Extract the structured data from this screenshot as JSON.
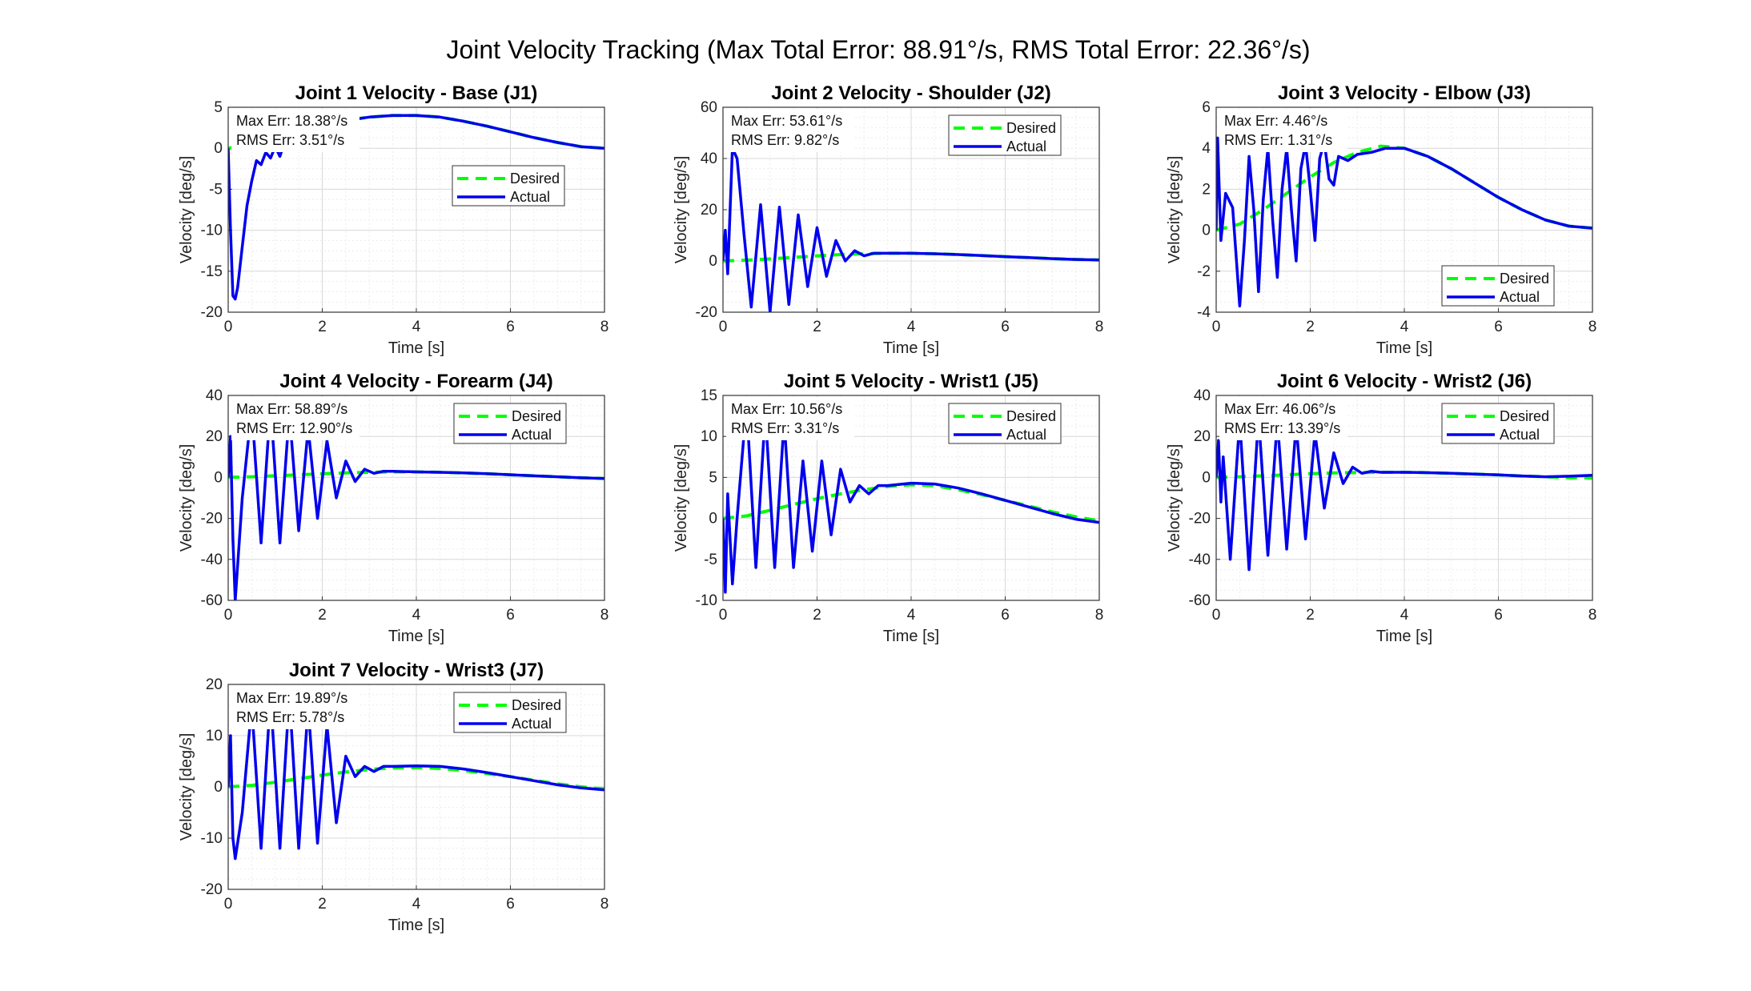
{
  "suptitle": "Joint Velocity Tracking (Max Total Error: 88.91°/s, RMS Total Error: 22.36°/s)",
  "chart_data": [
    {
      "type": "line",
      "title": "Joint 1 Velocity - Base (J1)",
      "xlabel": "Time [s]",
      "ylabel": "Velocity [deg/s]",
      "xlim": [
        0,
        8
      ],
      "ylim": [
        -20,
        5
      ],
      "xticks": [
        0,
        2,
        4,
        6,
        8
      ],
      "yticks": [
        -20,
        -15,
        -10,
        -5,
        0,
        5
      ],
      "grid": true,
      "legend": "right-upper",
      "annotations": [
        "Max Err: 18.38°/s",
        "RMS Err: 3.51°/s"
      ],
      "series": [
        {
          "name": "Desired",
          "color": "#00ff00",
          "style": "dashed",
          "x": [
            0,
            0.5,
            1,
            1.5,
            2,
            2.5,
            3,
            3.5,
            4,
            4.5,
            5,
            5.5,
            6,
            6.5,
            7,
            7.5,
            8
          ],
          "y": [
            0,
            0.5,
            1.2,
            2.0,
            2.8,
            3.4,
            3.8,
            4.0,
            4.0,
            3.8,
            3.3,
            2.7,
            2.0,
            1.3,
            0.7,
            0.2,
            0
          ]
        },
        {
          "name": "Actual",
          "color": "#0000ee",
          "style": "solid",
          "x": [
            0,
            0.05,
            0.1,
            0.15,
            0.2,
            0.3,
            0.4,
            0.5,
            0.6,
            0.7,
            0.8,
            0.9,
            1.0,
            1.1,
            1.2,
            1.4,
            1.6,
            1.8,
            2.0,
            2.5,
            3,
            3.5,
            4,
            4.5,
            5,
            5.5,
            6,
            6.5,
            7,
            7.5,
            8
          ],
          "y": [
            0,
            -10,
            -18.0,
            -18.4,
            -17.0,
            -12.0,
            -7.0,
            -4.0,
            -1.5,
            -2.0,
            -0.5,
            -1.2,
            0.2,
            -1.0,
            0.8,
            1.2,
            1.6,
            2.2,
            2.7,
            3.4,
            3.8,
            4.0,
            4.0,
            3.8,
            3.3,
            2.7,
            2.0,
            1.3,
            0.7,
            0.2,
            0
          ]
        }
      ]
    },
    {
      "type": "line",
      "title": "Joint 2 Velocity - Shoulder (J2)",
      "xlabel": "Time [s]",
      "ylabel": "Velocity [deg/s]",
      "xlim": [
        0,
        8
      ],
      "ylim": [
        -20,
        60
      ],
      "xticks": [
        0,
        2,
        4,
        6,
        8
      ],
      "yticks": [
        -20,
        0,
        20,
        40,
        60
      ],
      "grid": true,
      "legend": "top-right",
      "annotations": [
        "Max Err: 53.61°/s",
        "RMS Err: 9.82°/s"
      ],
      "series": [
        {
          "name": "Desired",
          "color": "#00ff00",
          "style": "dashed",
          "x": [
            0,
            0.5,
            1,
            1.5,
            2,
            2.5,
            3,
            3.5,
            4,
            4.5,
            5,
            5.5,
            6,
            6.5,
            7,
            7.5,
            8
          ],
          "y": [
            0,
            0.3,
            0.8,
            1.4,
            2.0,
            2.5,
            2.8,
            3.0,
            3.0,
            2.8,
            2.5,
            2.1,
            1.7,
            1.3,
            0.9,
            0.6,
            0.4
          ]
        },
        {
          "name": "Actual",
          "color": "#0000ee",
          "style": "solid",
          "x": [
            0,
            0.05,
            0.1,
            0.2,
            0.3,
            0.45,
            0.6,
            0.8,
            1.0,
            1.2,
            1.4,
            1.6,
            1.8,
            2.0,
            2.2,
            2.4,
            2.6,
            2.8,
            3.0,
            3.2,
            3.5,
            4,
            4.5,
            5,
            5.5,
            6,
            6.5,
            7,
            7.5,
            8
          ],
          "y": [
            0,
            12,
            -5,
            44,
            40,
            10,
            -18,
            22,
            -20,
            21,
            -17,
            18,
            -10,
            13,
            -6,
            8,
            0,
            4,
            2,
            3,
            3,
            3,
            2.8,
            2.5,
            2.1,
            1.7,
            1.3,
            0.9,
            0.6,
            0.4
          ]
        }
      ]
    },
    {
      "type": "line",
      "title": "Joint 3 Velocity - Elbow (J3)",
      "xlabel": "Time [s]",
      "ylabel": "Velocity [deg/s]",
      "xlim": [
        0,
        8
      ],
      "ylim": [
        -4,
        6
      ],
      "xticks": [
        0,
        2,
        4,
        6,
        8
      ],
      "yticks": [
        -4,
        -2,
        0,
        2,
        4,
        6
      ],
      "grid": true,
      "legend": "bottom-right",
      "annotations": [
        "Max Err: 4.46°/s",
        "RMS Err: 1.31°/s"
      ],
      "series": [
        {
          "name": "Desired",
          "color": "#00ff00",
          "style": "dashed",
          "x": [
            0,
            0.5,
            1,
            1.5,
            2,
            2.5,
            3,
            3.5,
            4,
            4.5,
            5,
            5.5,
            6,
            6.5,
            7,
            7.5,
            8
          ],
          "y": [
            0,
            0.3,
            1.0,
            1.8,
            2.6,
            3.3,
            3.8,
            4.1,
            4.0,
            3.6,
            3.0,
            2.3,
            1.6,
            1.0,
            0.5,
            0.2,
            0.1
          ]
        },
        {
          "name": "Actual",
          "color": "#0000ee",
          "style": "solid",
          "x": [
            0,
            0.03,
            0.1,
            0.2,
            0.35,
            0.5,
            0.6,
            0.7,
            0.8,
            0.9,
            1.0,
            1.1,
            1.2,
            1.3,
            1.4,
            1.5,
            1.6,
            1.7,
            1.8,
            1.9,
            2.0,
            2.1,
            2.2,
            2.3,
            2.4,
            2.5,
            2.6,
            2.8,
            3.0,
            3.3,
            3.6,
            4,
            4.5,
            5,
            5.5,
            6,
            6.5,
            7,
            7.5,
            8
          ],
          "y": [
            0,
            4.5,
            -0.5,
            1.8,
            1.1,
            -3.7,
            -0.5,
            3.6,
            1.0,
            -3.0,
            1.5,
            4.0,
            0.5,
            -2.3,
            2.0,
            4.0,
            1.0,
            -1.5,
            3.0,
            4.2,
            2.0,
            -0.5,
            3.5,
            4.3,
            2.5,
            2.2,
            3.6,
            3.4,
            3.7,
            3.8,
            4.0,
            4.0,
            3.6,
            3.0,
            2.3,
            1.6,
            1.0,
            0.5,
            0.2,
            0.1
          ]
        }
      ]
    },
    {
      "type": "line",
      "title": "Joint 4 Velocity - Forearm (J4)",
      "xlabel": "Time [s]",
      "ylabel": "Velocity [deg/s]",
      "xlim": [
        0,
        8
      ],
      "ylim": [
        -60,
        40
      ],
      "xticks": [
        0,
        2,
        4,
        6,
        8
      ],
      "yticks": [
        -60,
        -40,
        -20,
        0,
        20,
        40
      ],
      "grid": true,
      "legend": "top-right",
      "annotations": [
        "Max Err: 58.89°/s",
        "RMS Err: 12.90°/s"
      ],
      "series": [
        {
          "name": "Desired",
          "color": "#00ff00",
          "style": "dashed",
          "x": [
            0,
            0.5,
            1,
            1.5,
            2,
            2.5,
            3,
            3.5,
            4,
            4.5,
            5,
            5.5,
            6,
            6.5,
            7,
            7.5,
            8
          ],
          "y": [
            0,
            0.3,
            0.8,
            1.3,
            1.8,
            2.2,
            2.5,
            2.7,
            2.7,
            2.5,
            2.2,
            1.8,
            1.3,
            0.8,
            0.3,
            -0.2,
            -0.5
          ]
        },
        {
          "name": "Actual",
          "color": "#0000ee",
          "style": "solid",
          "x": [
            0,
            0.05,
            0.1,
            0.15,
            0.3,
            0.5,
            0.7,
            0.9,
            1.1,
            1.3,
            1.5,
            1.7,
            1.9,
            2.1,
            2.3,
            2.5,
            2.7,
            2.9,
            3.1,
            3.3,
            3.5,
            4,
            4.5,
            5,
            5.5,
            6,
            6.5,
            7,
            7.5,
            8
          ],
          "y": [
            0,
            20,
            -30,
            -60,
            -10,
            34,
            -32,
            36,
            -32,
            32,
            -26,
            24,
            -20,
            18,
            -10,
            8,
            -2,
            4,
            2,
            3,
            3,
            2.7,
            2.5,
            2.2,
            1.8,
            1.3,
            0.8,
            0.3,
            -0.2,
            -0.5
          ]
        }
      ]
    },
    {
      "type": "line",
      "title": "Joint 5 Velocity - Wrist1 (J5)",
      "xlabel": "Time [s]",
      "ylabel": "Velocity [deg/s]",
      "xlim": [
        0,
        8
      ],
      "ylim": [
        -10,
        15
      ],
      "xticks": [
        0,
        2,
        4,
        6,
        8
      ],
      "yticks": [
        -10,
        -5,
        0,
        5,
        10,
        15
      ],
      "grid": true,
      "legend": "top-right",
      "annotations": [
        "Max Err: 10.56°/s",
        "RMS Err: 3.31°/s"
      ],
      "series": [
        {
          "name": "Desired",
          "color": "#00ff00",
          "style": "dashed",
          "x": [
            0,
            0.5,
            1,
            1.5,
            2,
            2.5,
            3,
            3.5,
            4,
            4.5,
            5,
            5.5,
            6,
            6.5,
            7,
            7.5,
            8
          ],
          "y": [
            0,
            0.3,
            1.0,
            1.7,
            2.4,
            3.0,
            3.5,
            3.9,
            4.1,
            4.0,
            3.5,
            2.9,
            2.2,
            1.5,
            0.8,
            0.2,
            -0.3
          ]
        },
        {
          "name": "Actual",
          "color": "#0000ee",
          "style": "solid",
          "x": [
            0,
            0.05,
            0.1,
            0.2,
            0.3,
            0.5,
            0.7,
            0.9,
            1.1,
            1.3,
            1.5,
            1.7,
            1.9,
            2.1,
            2.3,
            2.5,
            2.7,
            2.9,
            3.1,
            3.3,
            3.5,
            4,
            4.5,
            5,
            5.5,
            6,
            6.5,
            7,
            7.5,
            8
          ],
          "y": [
            0,
            -9,
            3,
            -8,
            0,
            14,
            -6,
            13,
            -6,
            12,
            -6,
            7,
            -4,
            7,
            -2,
            6,
            2,
            4,
            3,
            4,
            4,
            4.3,
            4.2,
            3.7,
            3.0,
            2.2,
            1.4,
            0.6,
            -0.1,
            -0.5
          ]
        }
      ]
    },
    {
      "type": "line",
      "title": "Joint 6 Velocity - Wrist2 (J6)",
      "xlabel": "Time [s]",
      "ylabel": "Velocity [deg/s]",
      "xlim": [
        0,
        8
      ],
      "ylim": [
        -60,
        40
      ],
      "xticks": [
        0,
        2,
        4,
        6,
        8
      ],
      "yticks": [
        -60,
        -40,
        -20,
        0,
        20,
        40
      ],
      "grid": true,
      "legend": "top-right",
      "annotations": [
        "Max Err: 46.06°/s",
        "RMS Err: 13.39°/s"
      ],
      "series": [
        {
          "name": "Desired",
          "color": "#00ff00",
          "style": "dashed",
          "x": [
            0,
            0.5,
            1,
            1.5,
            2,
            2.5,
            3,
            3.5,
            4,
            4.5,
            5,
            5.5,
            6,
            6.5,
            7,
            7.5,
            8
          ],
          "y": [
            0,
            0.3,
            0.8,
            1.3,
            1.8,
            2.2,
            2.4,
            2.5,
            2.5,
            2.3,
            2.0,
            1.6,
            1.2,
            0.7,
            0.3,
            -0.1,
            -0.3
          ]
        },
        {
          "name": "Actual",
          "color": "#0000ee",
          "style": "solid",
          "x": [
            0,
            0.05,
            0.1,
            0.15,
            0.3,
            0.5,
            0.7,
            0.9,
            1.1,
            1.3,
            1.5,
            1.7,
            1.9,
            2.1,
            2.3,
            2.5,
            2.7,
            2.9,
            3.1,
            3.3,
            3.5,
            4,
            4.5,
            5,
            5.5,
            6,
            6.5,
            7,
            7.5,
            8
          ],
          "y": [
            0,
            18,
            -12,
            10,
            -40,
            28,
            -45,
            30,
            -38,
            28,
            -35,
            26,
            -30,
            22,
            -15,
            12,
            -3,
            5,
            2,
            3,
            2.5,
            2.5,
            2.3,
            2.0,
            1.6,
            1.2,
            0.7,
            0.3,
            0.6,
            1.0
          ]
        }
      ]
    },
    {
      "type": "line",
      "title": "Joint 7 Velocity - Wrist3 (J7)",
      "xlabel": "Time [s]",
      "ylabel": "Velocity [deg/s]",
      "xlim": [
        0,
        8
      ],
      "ylim": [
        -20,
        20
      ],
      "xticks": [
        0,
        2,
        4,
        6,
        8
      ],
      "yticks": [
        -20,
        -10,
        0,
        10,
        20
      ],
      "grid": true,
      "legend": "top-right",
      "annotations": [
        "Max Err: 19.89°/s",
        "RMS Err: 5.78°/s"
      ],
      "series": [
        {
          "name": "Desired",
          "color": "#00ff00",
          "style": "dashed",
          "x": [
            0,
            0.5,
            1,
            1.5,
            2,
            2.5,
            3,
            3.5,
            4,
            4.5,
            5,
            5.5,
            6,
            6.5,
            7,
            7.5,
            8
          ],
          "y": [
            0,
            0.3,
            0.9,
            1.6,
            2.3,
            2.9,
            3.4,
            3.7,
            3.8,
            3.6,
            3.2,
            2.6,
            2.0,
            1.3,
            0.6,
            0.0,
            -0.4
          ]
        },
        {
          "name": "Actual",
          "color": "#0000ee",
          "style": "solid",
          "x": [
            0,
            0.05,
            0.1,
            0.15,
            0.3,
            0.5,
            0.7,
            0.9,
            1.1,
            1.3,
            1.5,
            1.7,
            1.9,
            2.1,
            2.3,
            2.5,
            2.7,
            2.9,
            3.1,
            3.3,
            3.5,
            4,
            4.5,
            5,
            5.5,
            6,
            6.5,
            7,
            7.5,
            8
          ],
          "y": [
            0,
            10,
            -10,
            -14,
            -5,
            16,
            -12,
            18,
            -12,
            18,
            -12,
            16,
            -11,
            12,
            -7,
            6,
            2,
            4,
            3,
            4,
            4,
            4.1,
            4.0,
            3.5,
            2.8,
            2.0,
            1.2,
            0.4,
            -0.2,
            -0.6
          ]
        }
      ]
    }
  ]
}
